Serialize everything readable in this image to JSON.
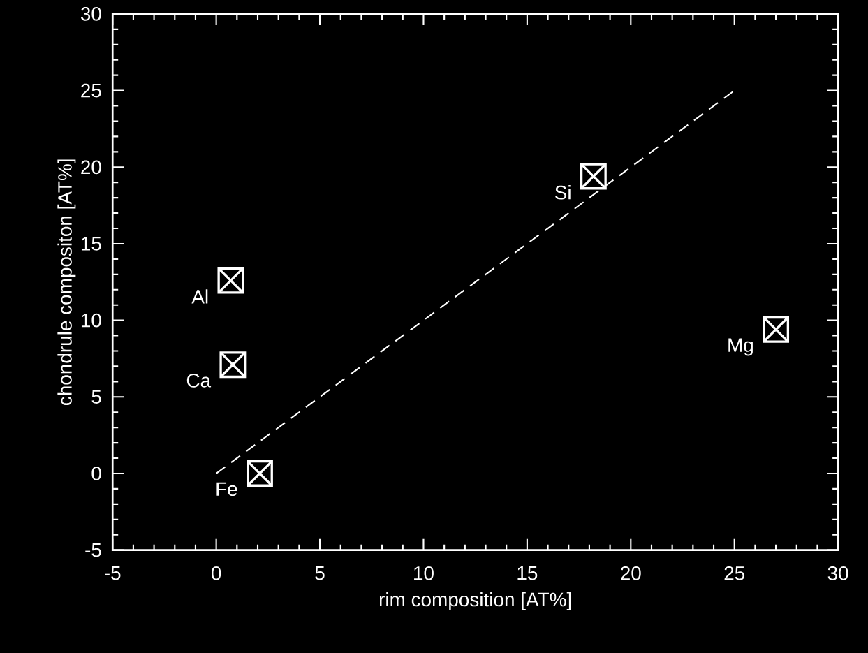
{
  "chart_data": {
    "type": "scatter",
    "xlabel": "rim composition [AT%]",
    "ylabel": "chondrule compositon [AT%]",
    "xlim": [
      -5,
      30
    ],
    "ylim": [
      -5,
      30
    ],
    "xticks": [
      -5,
      0,
      5,
      10,
      15,
      20,
      25,
      30
    ],
    "yticks": [
      -5,
      0,
      5,
      10,
      15,
      20,
      25,
      30
    ],
    "marker": "cross",
    "series": [
      {
        "color": "#ffffff",
        "x": [
          18.2,
          0.7,
          0.8,
          2.1,
          27.0
        ],
        "values": [
          19.4,
          12.6,
          7.1,
          0.0,
          9.4
        ]
      },
      {
        "type": "line",
        "color": "#ffffff",
        "line_style": "dashed",
        "marker": "none",
        "x": [
          0,
          25
        ],
        "values": [
          0,
          25
        ]
      }
    ],
    "annotations": [
      {
        "text": "Si",
        "x": 18.2,
        "y": 19.4
      },
      {
        "text": "Al",
        "x": 0.7,
        "y": 12.6
      },
      {
        "text": "Ca",
        "x": 0.8,
        "y": 7.1
      },
      {
        "text": "Fe",
        "x": 2.1,
        "y": 0.0
      },
      {
        "text": "Mg",
        "x": 27.0,
        "y": 9.4
      }
    ]
  }
}
